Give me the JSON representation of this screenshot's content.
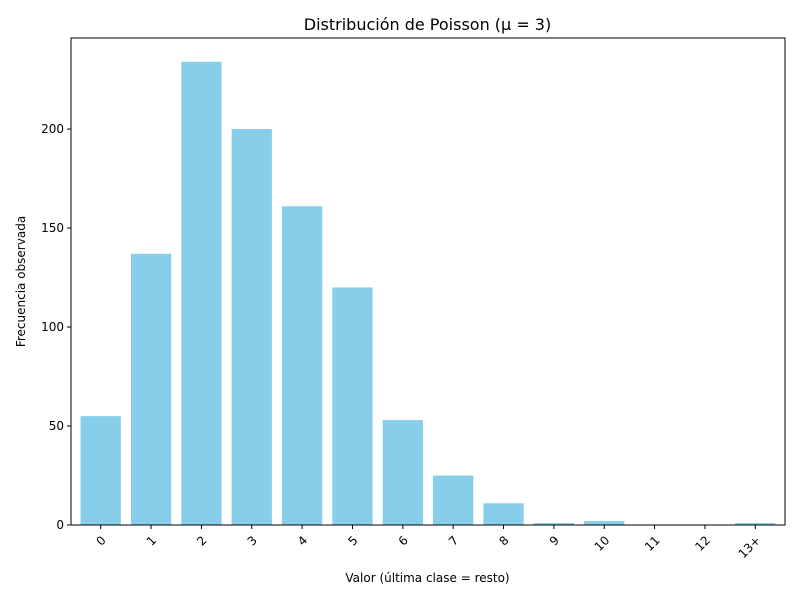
{
  "chart_data": {
    "type": "bar",
    "title": "Distribución de Poisson (μ = 3)",
    "xlabel": "Valor (última clase = resto)",
    "ylabel": "Frecuencia observada",
    "categories": [
      "0",
      "1",
      "2",
      "3",
      "4",
      "5",
      "6",
      "7",
      "8",
      "9",
      "10",
      "11",
      "12",
      "13+"
    ],
    "values": [
      55,
      137,
      234,
      200,
      161,
      120,
      53,
      25,
      11,
      1,
      2,
      0,
      0,
      1
    ],
    "ylim": [
      0,
      246
    ],
    "yticks": [
      0,
      50,
      100,
      150,
      200
    ],
    "bar_color": "#87ceeb",
    "grid": false,
    "x_tick_rotation": 45
  }
}
